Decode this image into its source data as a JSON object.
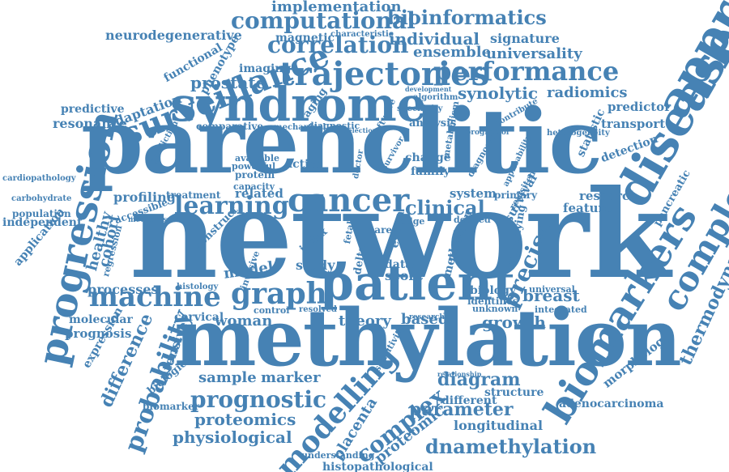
{
  "color": "#4682b4",
  "words": [
    "network",
    "parenclitic",
    "methylation",
    "syndrome",
    "patient",
    "approach",
    "disease",
    "progression",
    "biomarkers",
    "complexity",
    "cancer",
    "trajectories",
    "performance",
    "machine",
    "graph",
    "surveillance",
    "correlation",
    "computational",
    "bioinformatics",
    "learning",
    "prognostic",
    "dnamethylation",
    "modelling",
    "complex",
    "probability",
    "thermodynamic",
    "precise",
    "clinical",
    "diagram",
    "parameter",
    "proteomics",
    "physiological",
    "breast",
    "growth",
    "synolytic",
    "radiomics",
    "prostate",
    "ensemble",
    "universality",
    "individual",
    "implementation",
    "signature",
    "neurodegenerative",
    "adaptation",
    "predictive",
    "resonance",
    "functional",
    "phenotype",
    "imaging",
    "magnetic",
    "characteristic",
    "predictor",
    "transport",
    "statistic",
    "detection",
    "pancreatic",
    "research",
    "feature",
    "primary",
    "system",
    "change",
    "family",
    "active",
    "related",
    "treatment",
    "profiling",
    "cohort",
    "healthy",
    "regression",
    "processes",
    "molecular",
    "prognosis",
    "expression",
    "difference",
    "intensive",
    "biological",
    "sample",
    "marker",
    "theory",
    "based",
    "woman",
    "cervical",
    "control",
    "longitudinal",
    "different",
    "structure",
    "adenocarcinoma",
    "biomarker",
    "morphology",
    "proteomic",
    "placenta",
    "understanding",
    "histopathological",
    "application",
    "independent",
    "population",
    "carbohydrate",
    "cardiopathology",
    "comparative",
    "analysis",
    "software",
    "diagnostic",
    "specificity",
    "algorithm",
    "development",
    "biology",
    "identifies",
    "unknown",
    "integrated",
    "universal",
    "survival",
    "revisited",
    "model",
    "study",
    "index",
    "data",
    "score",
    "delta",
    "evenn",
    "fetal",
    "plasmon",
    "method",
    "care",
    "edge",
    "derived",
    "underlying",
    "mechanisms",
    "accessible",
    "capacity",
    "protein",
    "powerful",
    "available",
    "prediction",
    "resolved",
    "histology",
    "invasive",
    "aging",
    "heterogeneity",
    "progressor",
    "contribute",
    "mechanical",
    "selection",
    "doctor",
    "survivor",
    "metabolism",
    "diagnosis",
    "applicability",
    "relationship",
    "sensitivity",
    "researcher",
    "construct"
  ]
}
